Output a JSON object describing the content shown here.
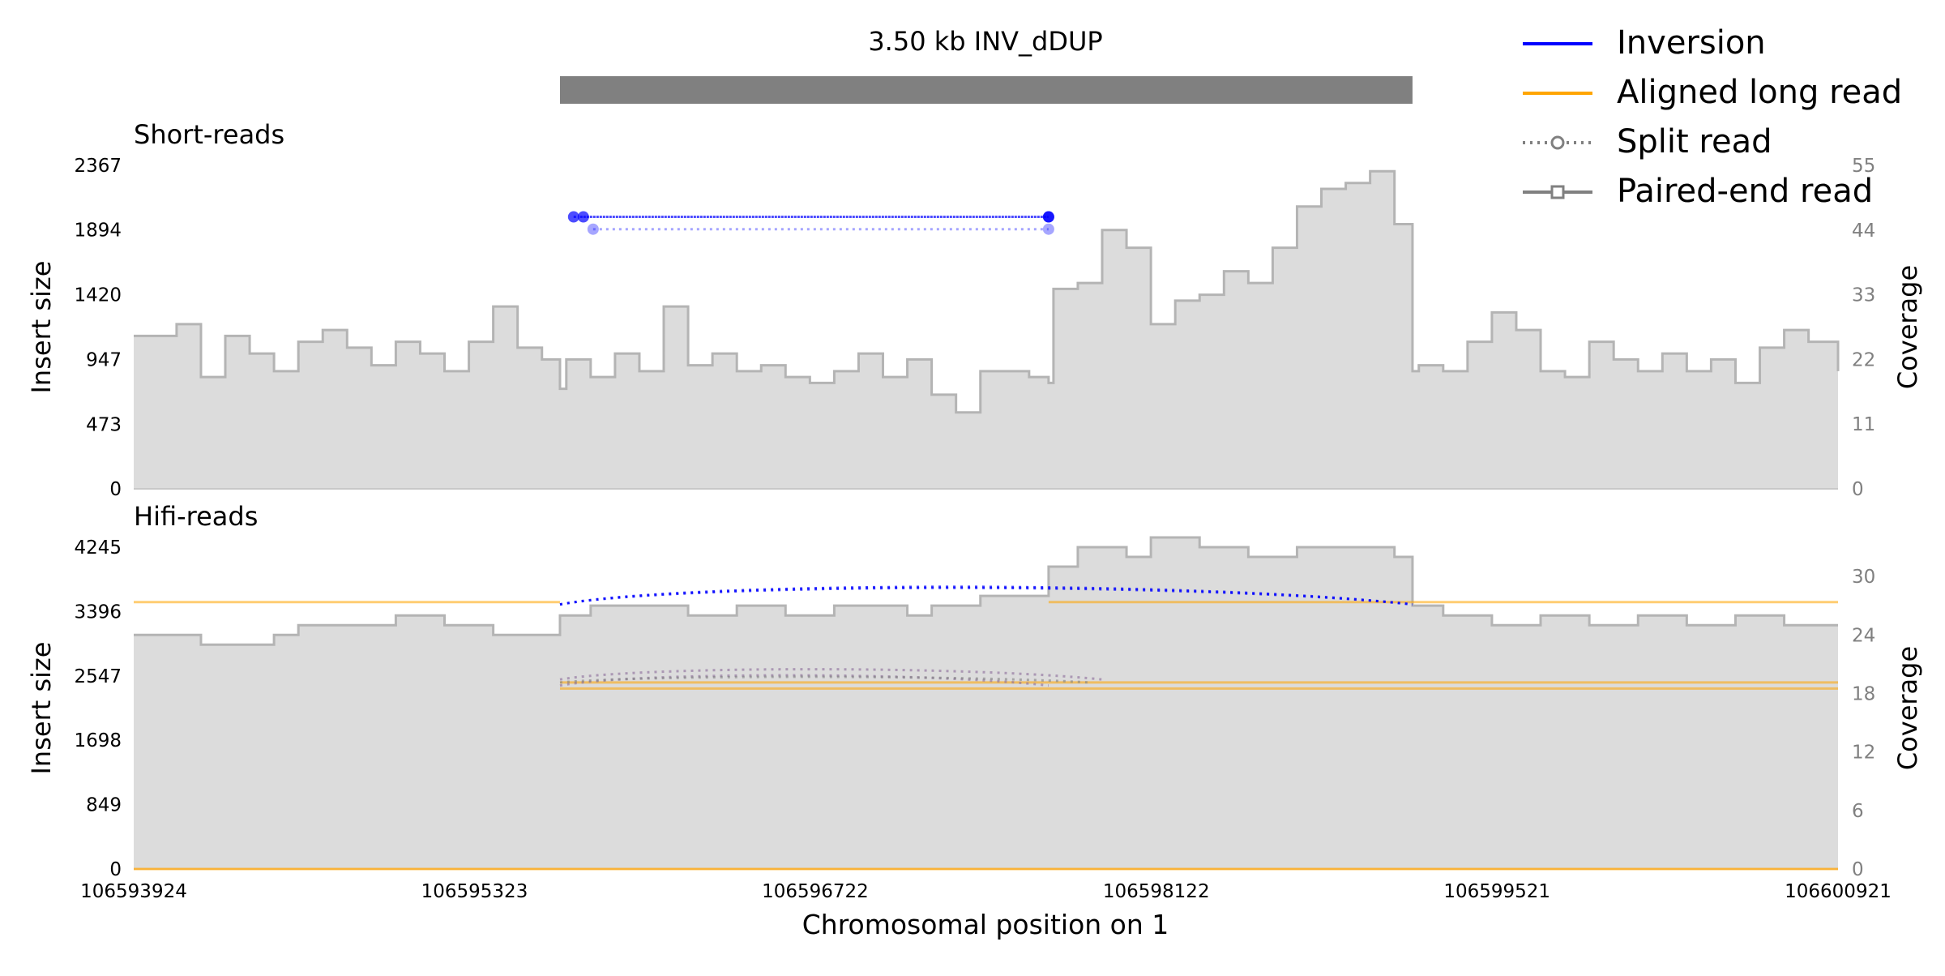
{
  "title": "3.50 kb INV_dDUP",
  "legend": {
    "items": [
      {
        "label": "Inversion",
        "color": "#0000ff",
        "style": "solid"
      },
      {
        "label": "Aligned long read",
        "color": "#ffa500",
        "style": "solid"
      },
      {
        "label": "Split read",
        "color": "#808080",
        "style": "dotted-circle"
      },
      {
        "label": "Paired-end read",
        "color": "#808080",
        "style": "solid-square"
      }
    ]
  },
  "xlabel": "Chromosomal position on 1",
  "colors": {
    "coverage_fill": "#dcdcdc",
    "coverage_line": "#b4b4b4",
    "sv_bar": "#808080",
    "inversion": "#0000ff",
    "long_read": "#ffa500",
    "split": "#808080"
  },
  "chart_data": [
    {
      "type": "area",
      "title": "Short-reads",
      "xlabel": "",
      "ylabel": "Insert size",
      "y2label": "Coverage",
      "xlim": [
        106593924,
        106600921
      ],
      "ylim": [
        0,
        2367
      ],
      "y2lim": [
        0,
        55
      ],
      "yticks": [
        0,
        473,
        947,
        1420,
        1894,
        2367
      ],
      "y2ticks": [
        0,
        11,
        22,
        33,
        44,
        55
      ],
      "sv_interval": [
        106595674,
        106599174
      ],
      "coverage": {
        "x": [
          106593924,
          106594100,
          106594200,
          106594300,
          106594400,
          106594500,
          106594600,
          106594700,
          106594800,
          106594900,
          106595000,
          106595100,
          106595200,
          106595300,
          106595400,
          106595500,
          106595600,
          106595674,
          106595700,
          106595800,
          106595900,
          106596000,
          106596100,
          106596200,
          106596300,
          106596400,
          106596500,
          106596600,
          106596700,
          106596800,
          106596900,
          106597000,
          106597100,
          106597200,
          106597300,
          106597400,
          106597500,
          106597600,
          106597680,
          106597700,
          106597800,
          106597900,
          106598000,
          106598100,
          106598200,
          106598300,
          106598400,
          106598500,
          106598600,
          106598700,
          106598800,
          106598900,
          106599000,
          106599100,
          106599174,
          106599200,
          106599300,
          106599400,
          106599500,
          106599600,
          106599700,
          106599800,
          106599900,
          106600000,
          106600100,
          106600200,
          106600300,
          106600400,
          106600500,
          106600600,
          106600700,
          106600800,
          106600921
        ],
        "y": [
          26,
          28,
          19,
          26,
          23,
          20,
          25,
          27,
          24,
          21,
          25,
          23,
          20,
          25,
          31,
          24,
          22,
          17,
          22,
          19,
          23,
          20,
          31,
          21,
          23,
          20,
          21,
          19,
          18,
          20,
          23,
          19,
          22,
          16,
          13,
          20,
          20,
          19,
          18,
          34,
          35,
          44,
          41,
          28,
          32,
          33,
          37,
          35,
          41,
          48,
          51,
          52,
          54,
          45,
          20,
          21,
          20,
          25,
          30,
          27,
          20,
          19,
          25,
          22,
          20,
          23,
          20,
          22,
          18,
          24,
          27,
          25,
          20
        ]
      },
      "split_reads": [
        {
          "x": [
            106595730,
            106597680
          ],
          "y": 1990
        },
        {
          "x": [
            106595770,
            106597680
          ],
          "y": 1990
        },
        {
          "x": [
            106595810,
            106597680
          ],
          "y": 1900
        }
      ]
    },
    {
      "type": "area",
      "title": "Hifi-reads",
      "xlabel": "Chromosomal position on 1",
      "ylabel": "Insert size",
      "y2label": "Coverage",
      "xlim": [
        106593924,
        106600921
      ],
      "ylim": [
        0,
        4245
      ],
      "y2lim": [
        0,
        33
      ],
      "yticks": [
        0,
        849,
        1698,
        2547,
        3396,
        4245
      ],
      "y2ticks": [
        0,
        6,
        12,
        18,
        24,
        30
      ],
      "xticks": [
        106593924,
        106595323,
        106596722,
        106598122,
        106599521,
        106600921
      ],
      "coverage": {
        "x": [
          106593924,
          106594200,
          106594500,
          106594600,
          106594800,
          106595000,
          106595200,
          106595400,
          106595600,
          106595674,
          106595800,
          106596000,
          106596200,
          106596400,
          106596600,
          106596800,
          106597000,
          106597100,
          106597200,
          106597300,
          106597400,
          106597500,
          106597600,
          106597680,
          106597800,
          106598000,
          106598100,
          106598300,
          106598500,
          106598700,
          106598900,
          106599100,
          106599174,
          106599300,
          106599500,
          106599700,
          106599900,
          106600100,
          106600300,
          106600500,
          106600700,
          106600921
        ],
        "y": [
          24,
          23,
          24,
          25,
          25,
          26,
          25,
          24,
          24,
          26,
          27,
          27,
          26,
          27,
          26,
          27,
          27,
          26,
          27,
          27,
          28,
          28,
          28,
          31,
          33,
          32,
          34,
          33,
          32,
          33,
          33,
          32,
          27,
          26,
          25,
          26,
          25,
          26,
          25,
          26,
          25,
          25
        ]
      },
      "long_reads": [
        {
          "x": [
            106593924,
            106595674
          ],
          "y": 3520
        },
        {
          "x": [
            106597680,
            106599174
          ],
          "y": 3520
        },
        {
          "x": [
            106599174,
            106600921
          ],
          "y": 3520
        },
        {
          "x": [
            106595674,
            106600921
          ],
          "y": 2460
        },
        {
          "x": [
            106595674,
            106600921
          ],
          "y": 2380
        },
        {
          "x": [
            106593924,
            106600921
          ],
          "y": 0
        }
      ],
      "split_arcs": [
        {
          "x": [
            106595674,
            106599174
          ],
          "y": 3490,
          "peak": 3800,
          "color": "inversion"
        },
        {
          "x": [
            106595674,
            106599174
          ],
          "y": 3490,
          "peak": 3780,
          "color": "inversion"
        },
        {
          "x": [
            106595674,
            106597900
          ],
          "y": 2500,
          "peak": 2680,
          "color": "mixed"
        },
        {
          "x": [
            106595674,
            106597680
          ],
          "y": 2420,
          "peak": 2600,
          "color": "mixed"
        },
        {
          "x": [
            106595674,
            106597850
          ],
          "y": 2460,
          "peak": 2560,
          "color": "split"
        }
      ]
    }
  ]
}
